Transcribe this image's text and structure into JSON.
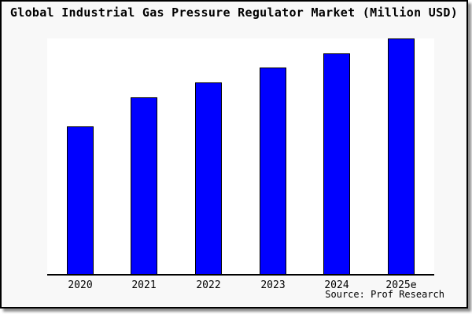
{
  "title": "Global Industrial Gas Pressure Regulator Market (Million USD)",
  "source": "Source: Prof Research",
  "colors": {
    "bar_fill": "#0000ff",
    "bar_border": "#000000",
    "figure_background": "#f8f8f8",
    "plot_background": "#ffffff",
    "axis_line": "#000000",
    "text": "#000000"
  },
  "chart_data": {
    "type": "bar",
    "title": "Global Industrial Gas Pressure Regulator Market (Million USD)",
    "categories": [
      "2020",
      "2021",
      "2022",
      "2023",
      "2024",
      "2025e"
    ],
    "values_normalized": [
      0.625,
      0.75,
      0.813,
      0.875,
      0.937,
      1.0
    ],
    "xlabel": "",
    "ylabel": "",
    "y_ticks": [],
    "grid": false,
    "legend_position": "none",
    "annotation": "Source: Prof Research"
  }
}
